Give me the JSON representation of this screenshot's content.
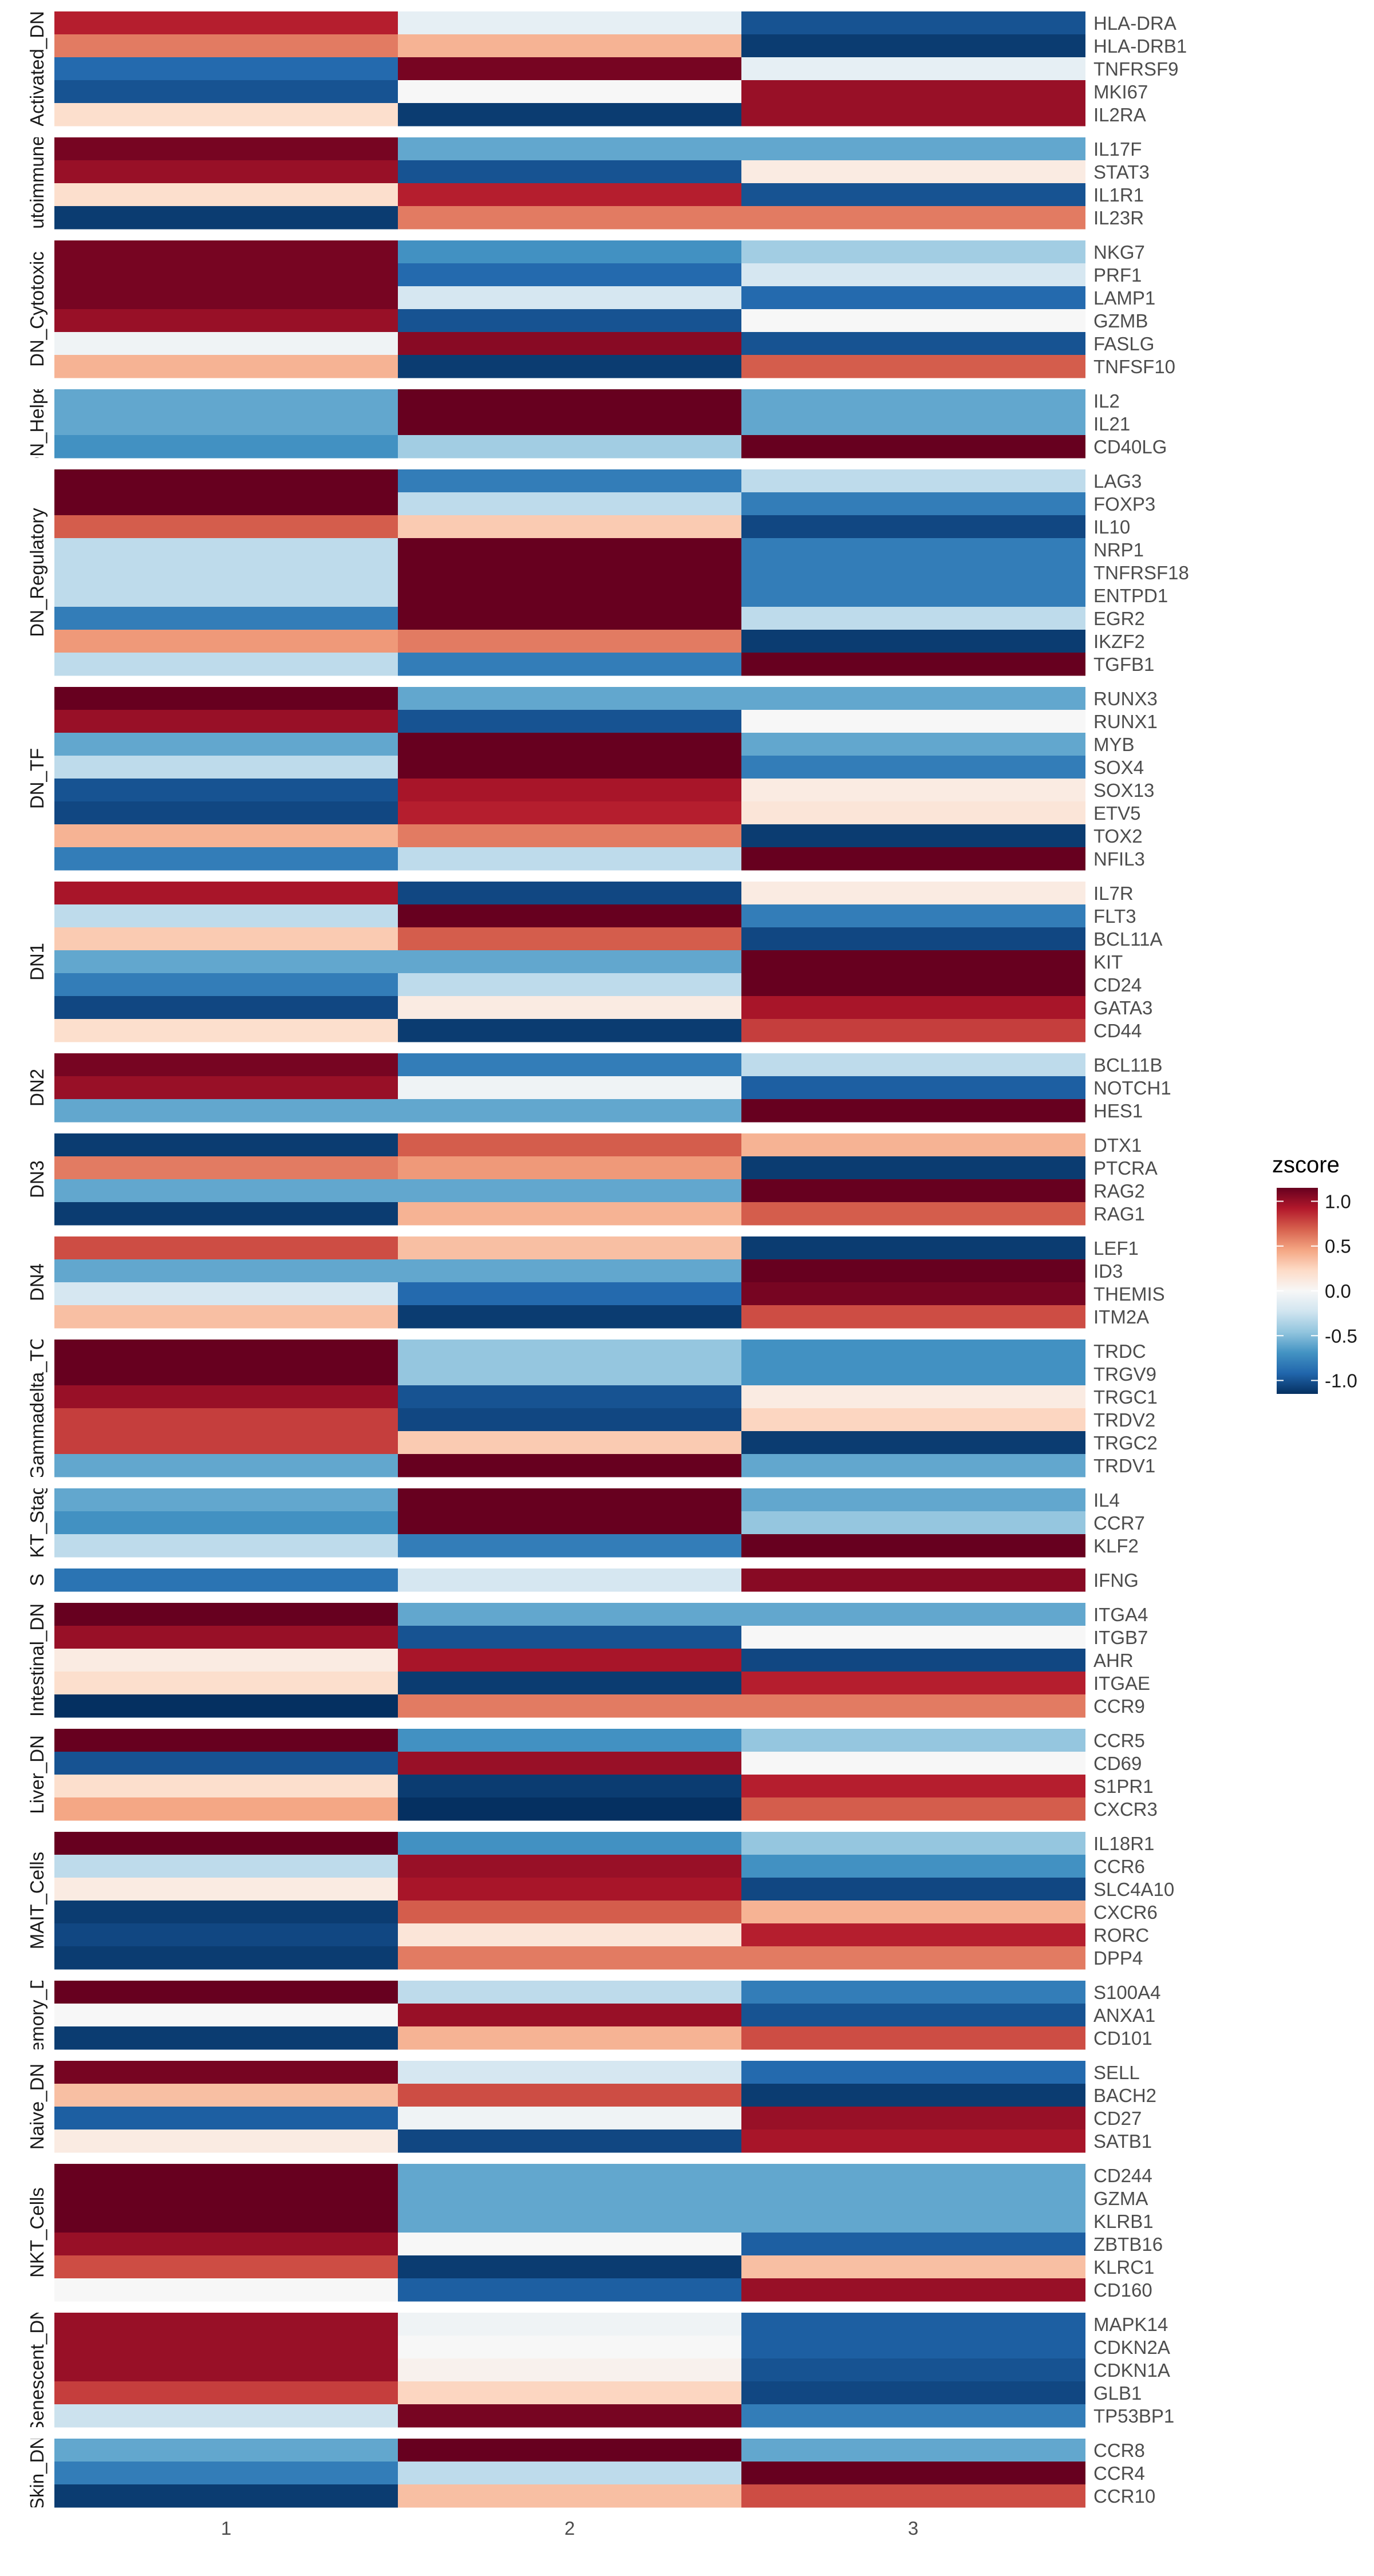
{
  "chart_data": {
    "type": "heatmap",
    "x": [
      "1",
      "2",
      "3"
    ],
    "colorscale": {
      "title": "zscore",
      "ticks": [
        1.0,
        0.5,
        0.0,
        -0.5,
        -1.0
      ],
      "tick_labels": [
        "1.0",
        "0.5",
        "0.0",
        "-0.5",
        "-1.0"
      ],
      "range": [
        -1.15,
        1.15
      ],
      "low_color": "#053061",
      "mid_color": "#f7f7f7",
      "high_color": "#67001f"
    },
    "groups": [
      {
        "label": "Activated_DN",
        "genes": [
          {
            "name": "HLA-DRA",
            "z": [
              0.9,
              -0.1,
              -1.0
            ]
          },
          {
            "name": "HLA-DRB1",
            "z": [
              0.6,
              0.4,
              -1.1
            ]
          },
          {
            "name": "TNFRSF9",
            "z": [
              -0.9,
              1.1,
              -0.1
            ]
          },
          {
            "name": "MKI67",
            "z": [
              -1.0,
              0.0,
              1.0
            ]
          },
          {
            "name": "IL2RA",
            "z": [
              0.2,
              -1.1,
              1.0
            ]
          }
        ]
      },
      {
        "label": "Autoimmune_",
        "genes": [
          {
            "name": "IL17F",
            "z": [
              1.1,
              -0.6,
              -0.6
            ]
          },
          {
            "name": "STAT3",
            "z": [
              1.0,
              -1.0,
              0.1
            ]
          },
          {
            "name": "IL1R1",
            "z": [
              0.2,
              0.9,
              -1.0
            ]
          },
          {
            "name": "IL23R",
            "z": [
              -1.1,
              0.6,
              0.6
            ]
          }
        ]
      },
      {
        "label": "DN_Cytotoxic",
        "genes": [
          {
            "name": "NKG7",
            "z": [
              1.1,
              -0.7,
              -0.4
            ]
          },
          {
            "name": "PRF1",
            "z": [
              1.1,
              -0.9,
              -0.2
            ]
          },
          {
            "name": "LAMP1",
            "z": [
              1.1,
              -0.2,
              -0.9
            ]
          },
          {
            "name": "GZMB",
            "z": [
              1.0,
              -1.0,
              0.0
            ]
          },
          {
            "name": "FASLG",
            "z": [
              -0.05,
              1.05,
              -1.0
            ]
          },
          {
            "name": "TNFSF10",
            "z": [
              0.4,
              -1.1,
              0.7
            ]
          }
        ]
      },
      {
        "label": "DN_Helper",
        "genes": [
          {
            "name": "IL2",
            "z": [
              -0.6,
              1.15,
              -0.6
            ]
          },
          {
            "name": "IL21",
            "z": [
              -0.6,
              1.15,
              -0.6
            ]
          },
          {
            "name": "CD40LG",
            "z": [
              -0.7,
              -0.4,
              1.15
            ]
          }
        ]
      },
      {
        "label": "DN_Regulatory",
        "genes": [
          {
            "name": "LAG3",
            "z": [
              1.15,
              -0.8,
              -0.3
            ]
          },
          {
            "name": "FOXP3",
            "z": [
              1.15,
              -0.3,
              -0.8
            ]
          },
          {
            "name": "IL10",
            "z": [
              0.7,
              0.3,
              -1.05
            ]
          },
          {
            "name": "NRP1",
            "z": [
              -0.3,
              1.15,
              -0.8
            ]
          },
          {
            "name": "TNFRSF18",
            "z": [
              -0.3,
              1.15,
              -0.8
            ]
          },
          {
            "name": "ENTPD1",
            "z": [
              -0.3,
              1.15,
              -0.8
            ]
          },
          {
            "name": "EGR2",
            "z": [
              -0.8,
              1.15,
              -0.3
            ]
          },
          {
            "name": "IKZF2",
            "z": [
              0.5,
              0.6,
              -1.1
            ]
          },
          {
            "name": "TGFB1",
            "z": [
              -0.3,
              -0.8,
              1.15
            ]
          }
        ]
      },
      {
        "label": "DN_TF",
        "genes": [
          {
            "name": "RUNX3",
            "z": [
              1.15,
              -0.6,
              -0.6
            ]
          },
          {
            "name": "RUNX1",
            "z": [
              1.0,
              -1.0,
              0.0
            ]
          },
          {
            "name": "MYB",
            "z": [
              -0.6,
              1.15,
              -0.6
            ]
          },
          {
            "name": "SOX4",
            "z": [
              -0.3,
              1.15,
              -0.8
            ]
          },
          {
            "name": "SOX13",
            "z": [
              -1.0,
              0.95,
              0.1
            ]
          },
          {
            "name": "ETV5",
            "z": [
              -1.05,
              0.9,
              0.15
            ]
          },
          {
            "name": "TOX2",
            "z": [
              0.4,
              0.6,
              -1.1
            ]
          },
          {
            "name": "NFIL3",
            "z": [
              -0.8,
              -0.3,
              1.15
            ]
          }
        ]
      },
      {
        "label": "DN1",
        "genes": [
          {
            "name": "IL7R",
            "z": [
              0.95,
              -1.05,
              0.1
            ]
          },
          {
            "name": "FLT3",
            "z": [
              -0.3,
              1.15,
              -0.8
            ]
          },
          {
            "name": "BCL11A",
            "z": [
              0.3,
              0.7,
              -1.05
            ]
          },
          {
            "name": "KIT",
            "z": [
              -0.6,
              -0.6,
              1.15
            ]
          },
          {
            "name": "CD24",
            "z": [
              -0.8,
              -0.3,
              1.15
            ]
          },
          {
            "name": "GATA3",
            "z": [
              -1.05,
              0.1,
              0.95
            ]
          },
          {
            "name": "CD44",
            "z": [
              0.2,
              -1.1,
              0.8
            ]
          }
        ]
      },
      {
        "label": "DN2",
        "genes": [
          {
            "name": "BCL11B",
            "z": [
              1.1,
              -0.8,
              -0.3
            ]
          },
          {
            "name": "NOTCH1",
            "z": [
              1.0,
              -0.05,
              -0.95
            ]
          },
          {
            "name": "HES1",
            "z": [
              -0.6,
              -0.6,
              1.15
            ]
          }
        ]
      },
      {
        "label": "DN3",
        "genes": [
          {
            "name": "DTX1",
            "z": [
              -1.1,
              0.7,
              0.4
            ]
          },
          {
            "name": "PTCRA",
            "z": [
              0.6,
              0.5,
              -1.1
            ]
          },
          {
            "name": "RAG2",
            "z": [
              -0.6,
              -0.6,
              1.15
            ]
          },
          {
            "name": "RAG1",
            "z": [
              -1.1,
              0.4,
              0.7
            ]
          }
        ]
      },
      {
        "label": "DN4",
        "genes": [
          {
            "name": "LEF1",
            "z": [
              0.75,
              0.35,
              -1.1
            ]
          },
          {
            "name": "ID3",
            "z": [
              -0.6,
              -0.6,
              1.15
            ]
          },
          {
            "name": "THEMIS",
            "z": [
              -0.2,
              -0.9,
              1.1
            ]
          },
          {
            "name": "ITM2A",
            "z": [
              0.35,
              -1.1,
              0.75
            ]
          }
        ]
      },
      {
        "label": "Gammadelta_TC",
        "genes": [
          {
            "name": "TRDC",
            "z": [
              1.15,
              -0.45,
              -0.7
            ]
          },
          {
            "name": "TRGV9",
            "z": [
              1.15,
              -0.45,
              -0.7
            ]
          },
          {
            "name": "TRGC1",
            "z": [
              1.0,
              -1.0,
              0.1
            ]
          },
          {
            "name": "TRDV2",
            "z": [
              0.8,
              -1.05,
              0.25
            ]
          },
          {
            "name": "TRGC2",
            "z": [
              0.8,
              0.3,
              -1.1
            ]
          },
          {
            "name": "TRDV1",
            "z": [
              -0.6,
              1.15,
              -0.6
            ]
          }
        ]
      },
      {
        "label": "NKT_Stage",
        "genes": [
          {
            "name": "IL4",
            "z": [
              -0.6,
              1.15,
              -0.6
            ]
          },
          {
            "name": "CCR7",
            "z": [
              -0.7,
              1.15,
              -0.45
            ]
          },
          {
            "name": "KLF2",
            "z": [
              -0.3,
              -0.8,
              1.15
            ]
          }
        ]
      },
      {
        "label": "S",
        "genes": [
          {
            "name": "IFNG",
            "z": [
              -0.85,
              -0.2,
              1.05
            ]
          }
        ]
      },
      {
        "label": "Intestinal_DN",
        "genes": [
          {
            "name": "ITGA4",
            "z": [
              1.15,
              -0.6,
              -0.6
            ]
          },
          {
            "name": "ITGB7",
            "z": [
              1.0,
              -1.0,
              0.0
            ]
          },
          {
            "name": "AHR",
            "z": [
              0.1,
              0.95,
              -1.05
            ]
          },
          {
            "name": "ITGAE",
            "z": [
              0.2,
              -1.1,
              0.9
            ]
          },
          {
            "name": "CCR9",
            "z": [
              -1.15,
              0.6,
              0.6
            ]
          }
        ]
      },
      {
        "label": "Liver_DN",
        "genes": [
          {
            "name": "CCR5",
            "z": [
              1.15,
              -0.7,
              -0.45
            ]
          },
          {
            "name": "CD69",
            "z": [
              -1.0,
              1.0,
              0.0
            ]
          },
          {
            "name": "S1PR1",
            "z": [
              0.2,
              -1.1,
              0.9
            ]
          },
          {
            "name": "CXCR3",
            "z": [
              0.45,
              -1.15,
              0.7
            ]
          }
        ]
      },
      {
        "label": "MAIT_Cells",
        "genes": [
          {
            "name": "IL18R1",
            "z": [
              1.15,
              -0.7,
              -0.45
            ]
          },
          {
            "name": "CCR6",
            "z": [
              -0.3,
              1.0,
              -0.7
            ]
          },
          {
            "name": "SLC4A10",
            "z": [
              0.1,
              0.95,
              -1.05
            ]
          },
          {
            "name": "CXCR6",
            "z": [
              -1.1,
              0.7,
              0.4
            ]
          },
          {
            "name": "RORC",
            "z": [
              -1.05,
              0.15,
              0.9
            ]
          },
          {
            "name": "DPP4",
            "z": [
              -1.1,
              0.6,
              0.6
            ]
          }
        ]
      },
      {
        "label": "Memory_DN",
        "genes": [
          {
            "name": "S100A4",
            "z": [
              1.15,
              -0.3,
              -0.8
            ]
          },
          {
            "name": "ANXA1",
            "z": [
              0.0,
              1.0,
              -1.0
            ]
          },
          {
            "name": "CD101",
            "z": [
              -1.1,
              0.4,
              0.75
            ]
          }
        ]
      },
      {
        "label": "Naive_DN",
        "genes": [
          {
            "name": "SELL",
            "z": [
              1.1,
              -0.2,
              -0.9
            ]
          },
          {
            "name": "BACH2",
            "z": [
              0.35,
              0.75,
              -1.1
            ]
          },
          {
            "name": "CD27",
            "z": [
              -0.95,
              -0.05,
              1.0
            ]
          },
          {
            "name": "SATB1",
            "z": [
              0.1,
              -1.05,
              0.95
            ]
          }
        ]
      },
      {
        "label": "NKT_Cells",
        "genes": [
          {
            "name": "CD244",
            "z": [
              1.15,
              -0.6,
              -0.6
            ]
          },
          {
            "name": "GZMA",
            "z": [
              1.15,
              -0.6,
              -0.6
            ]
          },
          {
            "name": "KLRB1",
            "z": [
              1.15,
              -0.6,
              -0.6
            ]
          },
          {
            "name": "ZBTB16",
            "z": [
              1.0,
              0.0,
              -0.95
            ]
          },
          {
            "name": "KLRC1",
            "z": [
              0.75,
              -1.1,
              0.35
            ]
          },
          {
            "name": "CD160",
            "z": [
              0.0,
              -0.95,
              1.0
            ]
          }
        ]
      },
      {
        "label": "Senescent_DN",
        "genes": [
          {
            "name": "MAPK14",
            "z": [
              1.0,
              -0.05,
              -0.95
            ]
          },
          {
            "name": "CDKN2A",
            "z": [
              1.0,
              0.0,
              -0.95
            ]
          },
          {
            "name": "CDKN1A",
            "z": [
              1.0,
              0.05,
              -1.0
            ]
          },
          {
            "name": "GLB1",
            "z": [
              0.8,
              0.25,
              -1.05
            ]
          },
          {
            "name": "TP53BP1",
            "z": [
              -0.25,
              1.1,
              -0.8
            ]
          }
        ]
      },
      {
        "label": "Skin_DN",
        "genes": [
          {
            "name": "CCR8",
            "z": [
              -0.6,
              1.15,
              -0.6
            ]
          },
          {
            "name": "CCR4",
            "z": [
              -0.8,
              -0.3,
              1.15
            ]
          },
          {
            "name": "CCR10",
            "z": [
              -1.1,
              0.35,
              0.75
            ]
          }
        ]
      }
    ]
  }
}
